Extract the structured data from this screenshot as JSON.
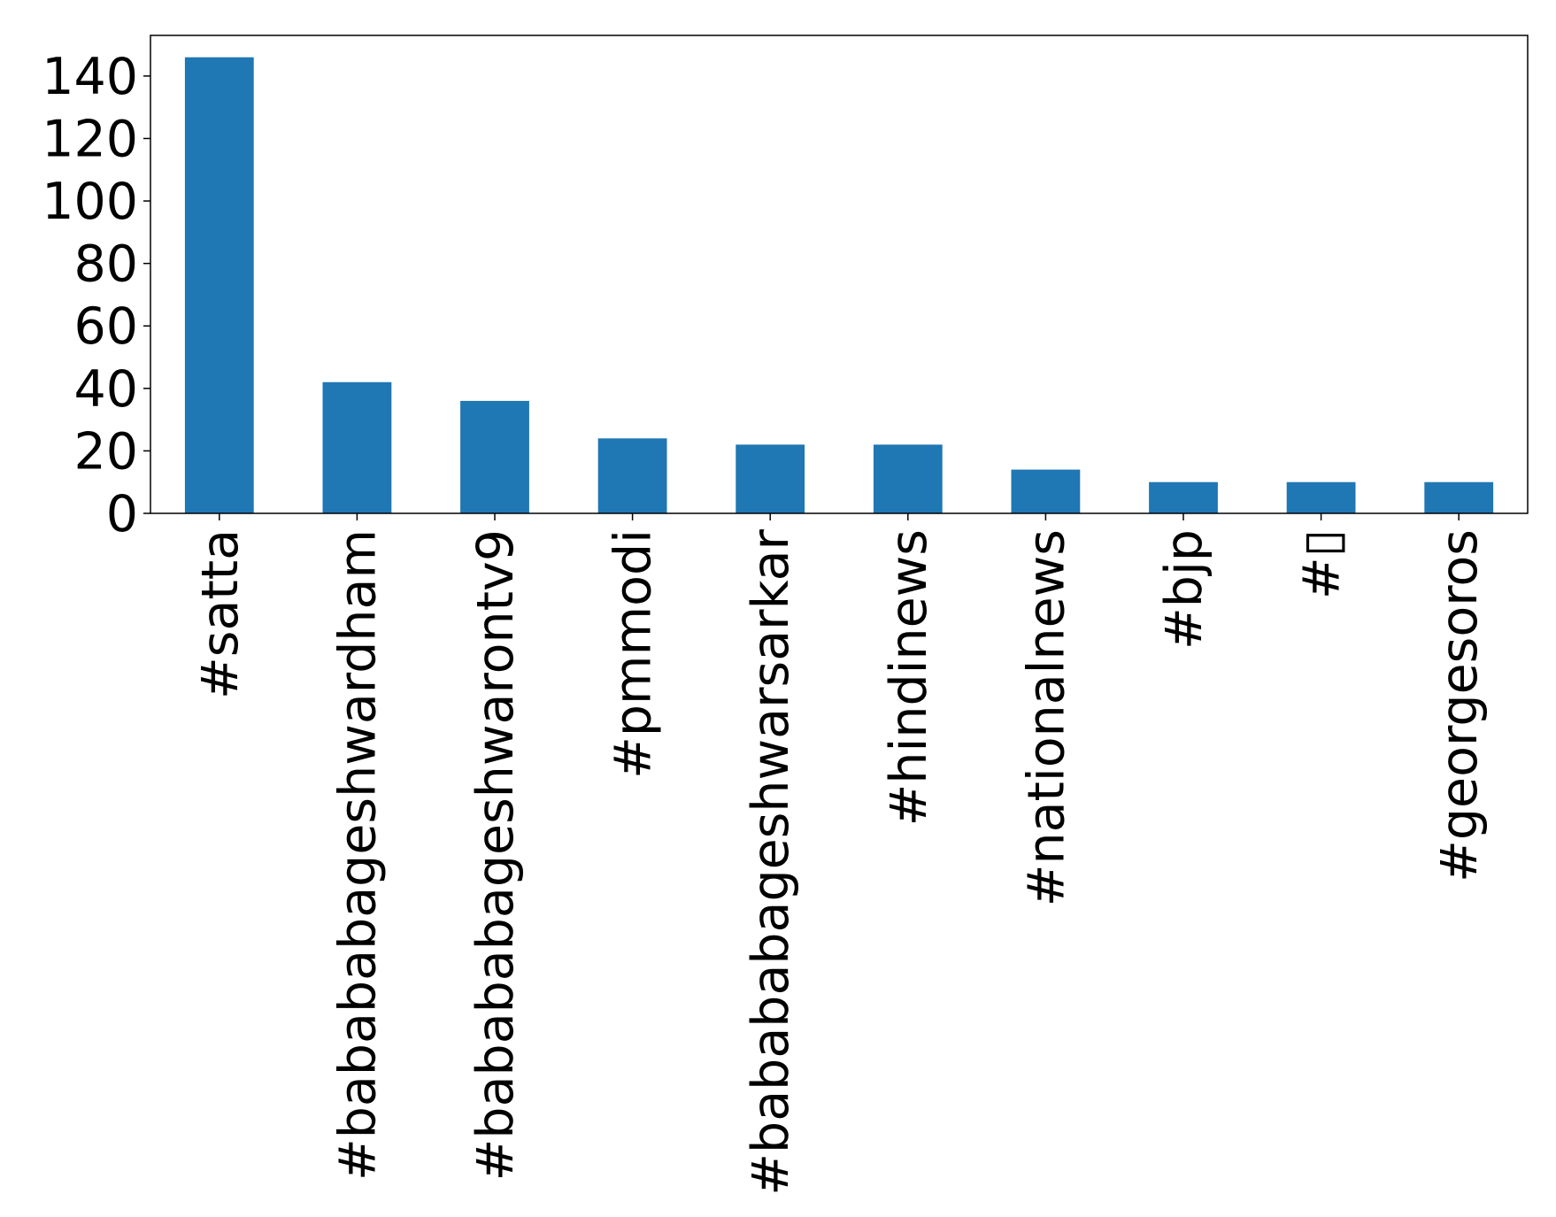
{
  "chart_data": {
    "type": "bar",
    "title": "",
    "xlabel": "",
    "ylabel": "",
    "categories": [
      "#satta",
      "#babababageshwardham",
      "#babababageshwarontv9",
      "#pmmodi",
      "#babababageshwarsarkar",
      "#hindinews",
      "#nationalnews",
      "#bjp",
      "#▯",
      "#georgesoros"
    ],
    "values": [
      146,
      42,
      36,
      24,
      22,
      22,
      14,
      10,
      10,
      10
    ],
    "ylim": [
      0,
      153
    ],
    "yticks": [
      0,
      20,
      40,
      60,
      80,
      100,
      120,
      140
    ],
    "bar_color": "#1f77b4",
    "grid": false,
    "legend": "none"
  }
}
